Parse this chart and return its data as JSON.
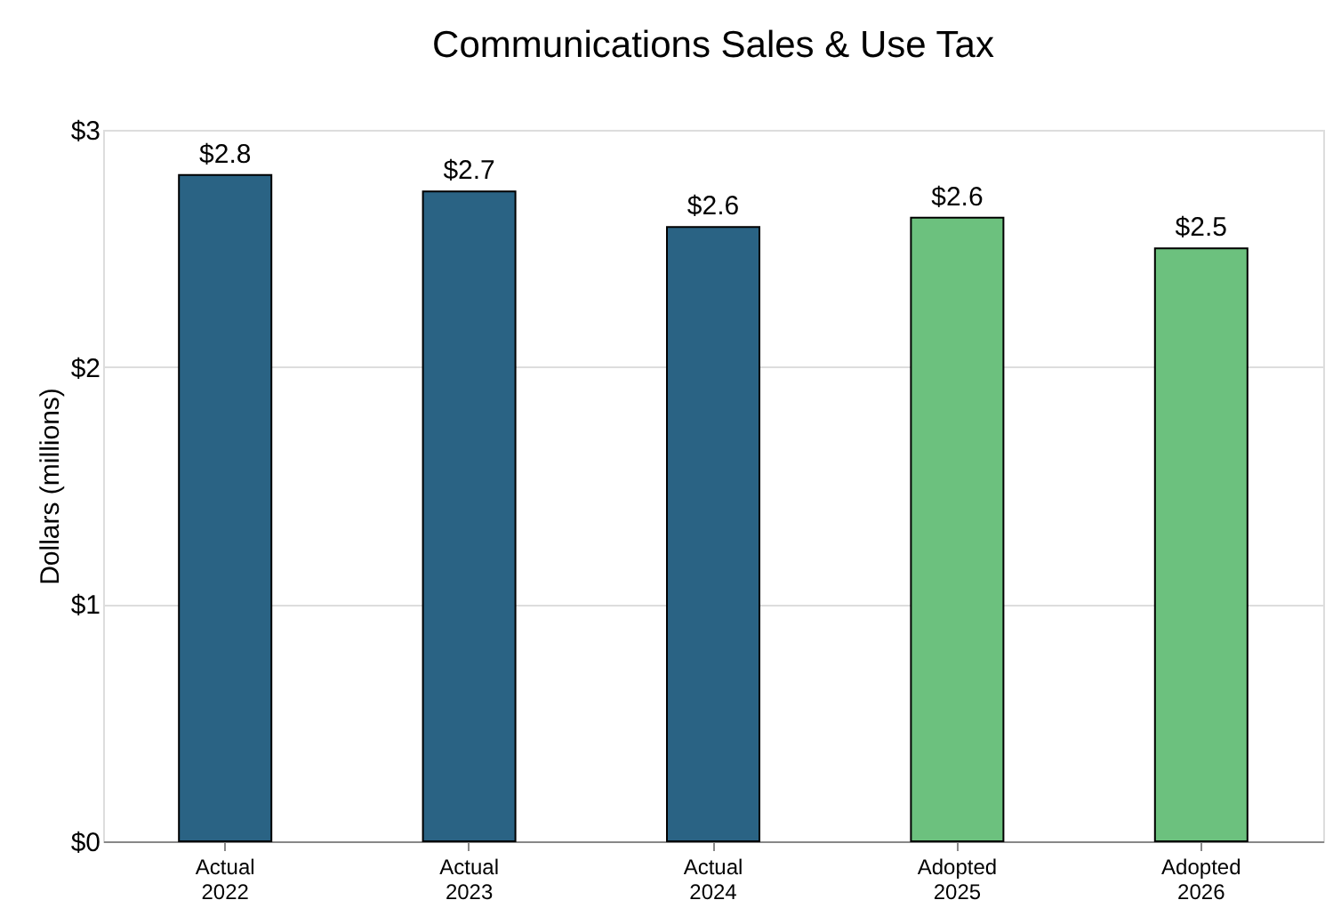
{
  "chart_data": {
    "type": "bar",
    "title": "Communications Sales & Use Tax",
    "ylabel": "Dollars (millions)",
    "categories": [
      "Actual 2022",
      "Actual 2023",
      "Actual 2024",
      "Adopted 2025",
      "Adopted 2026"
    ],
    "values": [
      2.81,
      2.74,
      2.59,
      2.63,
      2.5
    ],
    "colors": [
      "#2a6384",
      "#2a6384",
      "#2a6384",
      "#6cc17e",
      "#6cc17e"
    ],
    "value_labels": [
      "$2.8",
      "$2.7",
      "$2.6",
      "$2.6",
      "$2.5"
    ],
    "ylim": [
      0,
      3
    ],
    "yticks": [
      {
        "value": 0,
        "label": "$0"
      },
      {
        "value": 1,
        "label": "$1"
      },
      {
        "value": 2,
        "label": "$2"
      },
      {
        "value": 3,
        "label": "$3"
      }
    ],
    "grid": "y"
  }
}
